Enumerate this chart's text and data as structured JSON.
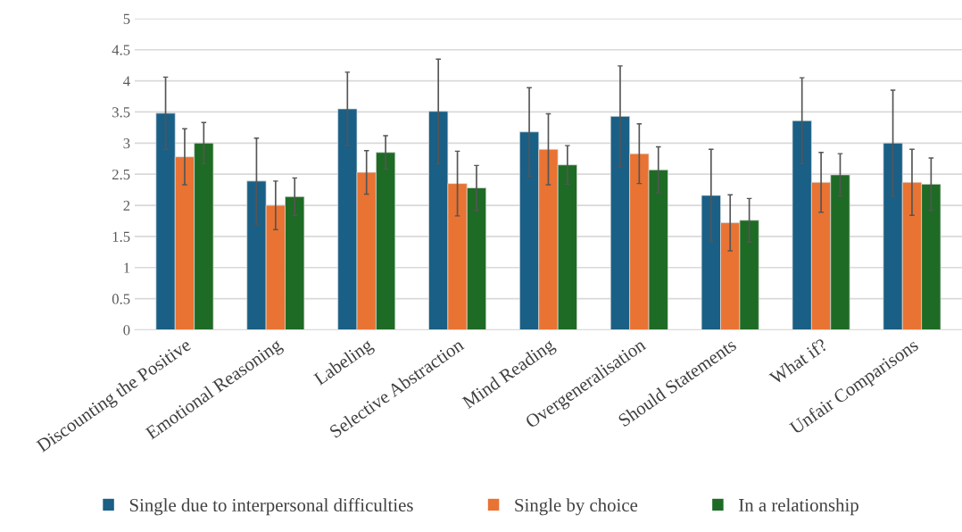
{
  "chart_data": {
    "type": "bar",
    "categories": [
      "Discounting the Positive",
      "Emotional Reasoning",
      "Labeling",
      "Selective Abstraction",
      "Mind Reading",
      "Overgeneralisation",
      "Should Statements",
      "What if?",
      "Unfair Comparisons"
    ],
    "series": [
      {
        "name": "Single due to interpersonal difficulties",
        "color": "#1a5f85",
        "values": [
          3.48,
          2.39,
          3.55,
          3.51,
          3.18,
          3.43,
          2.16,
          3.36,
          3.0
        ],
        "errors": [
          0.58,
          0.69,
          0.59,
          0.84,
          0.71,
          0.81,
          0.74,
          0.69,
          0.85
        ]
      },
      {
        "name": "Single by choice",
        "color": "#e87333",
        "values": [
          2.78,
          2.0,
          2.53,
          2.35,
          2.9,
          2.83,
          1.72,
          2.37,
          2.37
        ],
        "errors": [
          0.45,
          0.39,
          0.35,
          0.52,
          0.57,
          0.48,
          0.45,
          0.48,
          0.53
        ]
      },
      {
        "name": "In a relationship",
        "color": "#1e6b25",
        "values": [
          3.0,
          2.14,
          2.85,
          2.28,
          2.65,
          2.57,
          1.76,
          2.49,
          2.34
        ],
        "errors": [
          0.33,
          0.3,
          0.27,
          0.36,
          0.31,
          0.37,
          0.35,
          0.34,
          0.42
        ]
      }
    ],
    "ylim": [
      0,
      5
    ],
    "yticks": [
      0,
      0.5,
      1,
      1.5,
      2,
      2.5,
      3,
      3.5,
      4,
      4.5,
      5
    ],
    "grid": "y",
    "legend": "bottom"
  }
}
